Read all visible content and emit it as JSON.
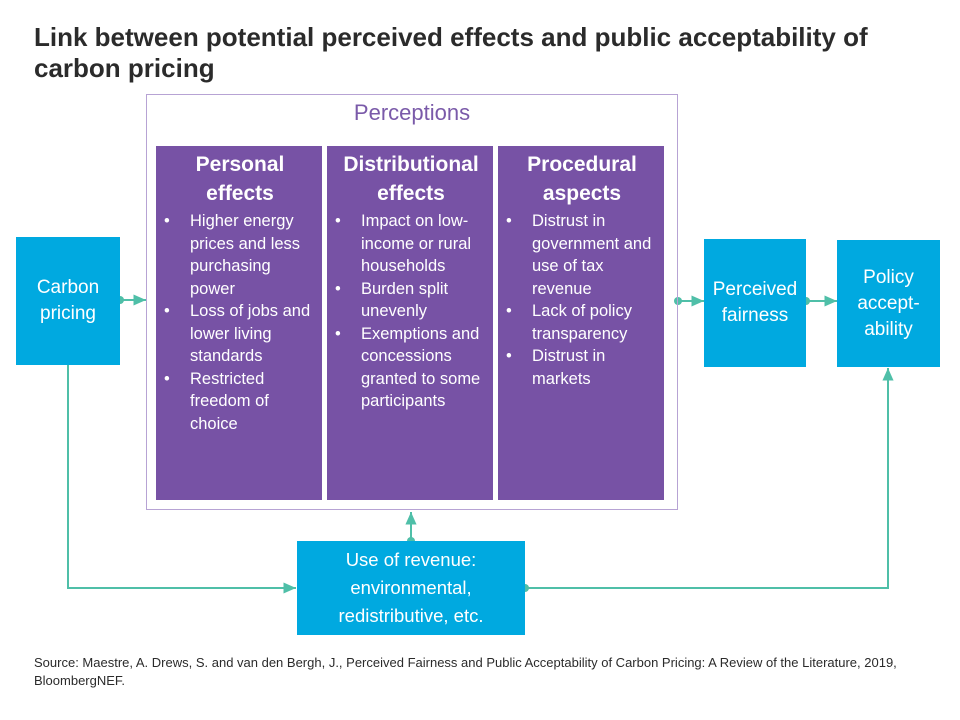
{
  "title": "Link between potential perceived effects and public acceptability of carbon pricing",
  "perceptions_label": "Perceptions",
  "columns": [
    {
      "heading_line1": "Personal",
      "heading_line2": "effects",
      "bullets": [
        "Higher energy prices and less purchasing power",
        "Loss of jobs and lower living standards",
        "Restricted freedom of choice"
      ]
    },
    {
      "heading_line1": "Distributional",
      "heading_line2": "effects",
      "bullets": [
        "Impact on low-income or rural households",
        "Burden split unevenly",
        "Exemptions and concessions granted to some participants"
      ]
    },
    {
      "heading_line1": "Procedural",
      "heading_line2": "aspects",
      "bullets": [
        "Distrust in government and use of tax revenue",
        "Lack of policy transparency",
        "Distrust in markets"
      ]
    }
  ],
  "boxes": {
    "carbon_pricing": "Carbon pricing",
    "perceived_fairness": "Perceived fairness",
    "policy_acceptability": "Policy accept-ability",
    "use_of_revenue": "Use of revenue: environmental, redistributive, etc."
  },
  "source": "Source: Maestre, A. Drews, S. and van den Bergh, J., Perceived Fairness and Public Acceptability of Carbon Pricing: A Review of the Literature, 2019, BloombergNEF.",
  "colors": {
    "purple_fill": "#7752a5",
    "blue_fill": "#00a9e0",
    "connector": "#4fbfa8",
    "frame": "#b7a3d4"
  }
}
